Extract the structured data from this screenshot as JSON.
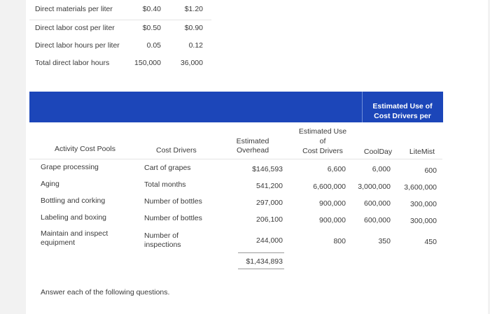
{
  "top_table": {
    "rows": [
      {
        "label": "Direct materials per liter",
        "a": "$0.40",
        "b": "$1.20"
      },
      {
        "label": "Direct labor cost per liter",
        "a": "$0.50",
        "b": "$0.90"
      },
      {
        "label": "Direct labor hours per liter",
        "a": "0.05",
        "b": "0.12"
      },
      {
        "label": "Total direct labor hours",
        "a": "150,000",
        "b": "36,000"
      }
    ]
  },
  "activity_table": {
    "band_header": "Estimated Use of Cost Drivers per Product",
    "headers": {
      "pools": "Activity Cost Pools",
      "drivers": "Cost Drivers",
      "overhead_line1": "Estimated",
      "overhead_line2": "Overhead",
      "use_line1": "Estimated Use",
      "use_line2": "of",
      "use_line3": "Cost Drivers",
      "coolday": "CoolDay",
      "litemist": "LiteMist"
    },
    "rows": [
      {
        "pool": "Grape processing",
        "pool2": "",
        "driver": "Cart of grapes",
        "driver2": "",
        "overhead": "$146,593",
        "use": "6,600",
        "coolday": "6,000",
        "litemist": "600"
      },
      {
        "pool": "Aging",
        "pool2": "",
        "driver": "Total months",
        "driver2": "",
        "overhead": "541,200",
        "use": "6,600,000",
        "coolday": "3,000,000",
        "litemist": "3,600,000"
      },
      {
        "pool": "Bottling and corking",
        "pool2": "",
        "driver": "Number of bottles",
        "driver2": "",
        "overhead": "297,000",
        "use": "900,000",
        "coolday": "600,000",
        "litemist": "300,000"
      },
      {
        "pool": "Labeling and boxing",
        "pool2": "",
        "driver": "Number of bottles",
        "driver2": "",
        "overhead": "206,100",
        "use": "900,000",
        "coolday": "600,000",
        "litemist": "300,000"
      },
      {
        "pool": "Maintain and inspect",
        "pool2": "equipment",
        "driver": "Number of",
        "driver2": "inspections",
        "overhead": "244,000",
        "use": "800",
        "coolday": "350",
        "litemist": "450"
      }
    ],
    "total_overhead": "$1,434,893"
  },
  "footer_text": "Answer each of the following questions."
}
